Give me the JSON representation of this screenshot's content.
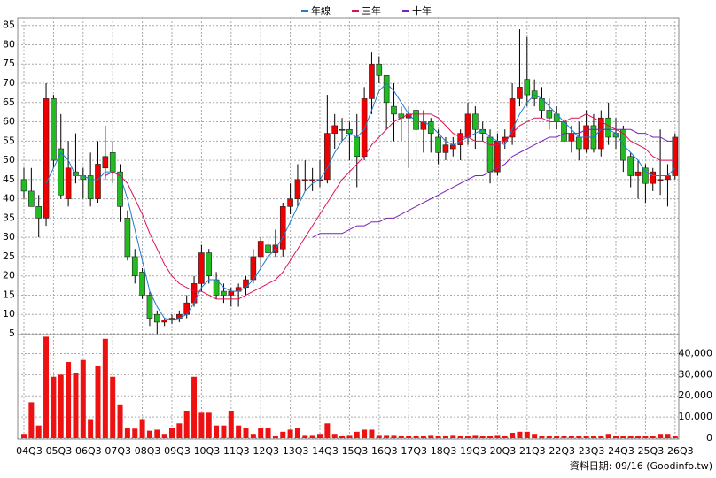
{
  "chart_data": [
    {
      "type": "candlestick",
      "ohlc": [
        [
          45,
          48,
          40,
          42
        ],
        [
          42,
          48,
          38,
          38
        ],
        [
          38,
          41,
          30,
          35
        ],
        [
          35,
          70,
          33,
          66
        ],
        [
          66,
          67,
          48,
          50
        ],
        [
          53,
          62,
          40,
          41
        ],
        [
          40,
          55,
          38,
          48
        ],
        [
          47,
          57,
          44,
          46
        ],
        [
          46,
          48,
          40,
          45
        ],
        [
          46,
          52,
          38,
          40
        ],
        [
          40,
          55,
          39,
          49
        ],
        [
          48,
          59,
          45,
          51
        ],
        [
          52,
          55,
          44,
          47
        ],
        [
          47,
          49,
          34,
          38
        ],
        [
          35,
          37,
          24,
          25
        ],
        [
          25,
          27,
          18,
          20
        ],
        [
          21,
          22,
          14,
          15
        ],
        [
          15,
          16,
          7,
          9
        ],
        [
          10,
          11,
          5,
          8
        ],
        [
          8,
          9,
          7,
          8.5
        ],
        [
          8.5,
          10,
          7.5,
          9
        ],
        [
          9,
          11,
          8,
          10
        ],
        [
          10,
          15,
          9,
          13
        ],
        [
          13,
          20,
          12,
          18
        ],
        [
          18,
          28,
          16,
          26
        ],
        [
          26,
          27,
          18,
          20
        ],
        [
          19,
          21,
          14,
          15
        ],
        [
          16,
          18,
          13,
          15
        ],
        [
          15,
          17,
          12,
          16
        ],
        [
          16,
          18,
          12,
          17
        ],
        [
          17,
          20,
          15,
          19
        ],
        [
          19,
          27,
          18,
          25
        ],
        [
          25,
          30,
          22,
          29
        ],
        [
          28,
          30,
          24,
          26
        ],
        [
          26,
          32,
          25,
          28
        ],
        [
          27,
          39,
          25,
          38
        ],
        [
          38,
          44,
          36,
          40
        ],
        [
          40,
          49,
          38,
          45
        ],
        [
          45,
          50,
          42,
          45
        ],
        [
          45,
          48,
          42,
          45
        ],
        [
          45,
          50,
          43,
          45
        ],
        [
          45,
          67,
          44,
          57
        ],
        [
          57,
          62,
          53,
          59
        ],
        [
          58,
          61,
          55,
          58
        ],
        [
          58,
          60,
          50,
          57
        ],
        [
          56,
          62,
          43,
          51
        ],
        [
          51,
          69,
          50,
          66
        ],
        [
          66,
          78,
          62,
          75
        ],
        [
          75,
          77,
          70,
          72
        ],
        [
          72,
          72,
          58,
          65
        ],
        [
          64,
          70,
          55,
          62
        ],
        [
          62,
          64,
          55,
          61
        ],
        [
          61,
          64,
          48,
          62
        ],
        [
          63,
          64,
          48,
          58
        ],
        [
          58,
          63,
          52,
          60
        ],
        [
          60,
          61,
          52,
          57
        ],
        [
          56,
          58,
          49,
          52
        ],
        [
          52,
          56,
          50,
          54
        ],
        [
          53,
          56,
          51,
          54
        ],
        [
          54,
          58,
          50,
          57
        ],
        [
          56,
          65,
          54,
          62
        ],
        [
          62,
          64,
          53,
          58
        ],
        [
          58,
          60,
          55,
          57
        ],
        [
          56,
          58,
          44,
          47
        ],
        [
          47,
          57,
          46,
          55
        ],
        [
          55,
          58,
          53,
          56
        ],
        [
          56,
          70,
          54,
          66
        ],
        [
          66,
          84,
          64,
          69
        ],
        [
          71,
          82,
          64,
          67
        ],
        [
          68,
          71,
          64,
          66
        ],
        [
          66,
          69,
          61,
          63
        ],
        [
          63,
          66,
          58,
          61
        ],
        [
          62,
          64,
          58,
          60
        ],
        [
          60,
          62,
          54,
          55
        ],
        [
          55,
          59,
          52,
          57
        ],
        [
          56,
          60,
          50,
          53
        ],
        [
          53,
          63,
          52,
          59
        ],
        [
          59,
          62,
          52,
          53
        ],
        [
          53,
          63,
          51,
          61
        ],
        [
          61,
          65,
          54,
          56
        ],
        [
          57,
          61,
          53,
          56
        ],
        [
          58,
          59,
          47,
          50
        ],
        [
          51,
          52,
          43,
          46
        ],
        [
          46,
          50,
          40,
          47
        ],
        [
          48,
          49,
          39,
          44
        ],
        [
          44,
          48,
          42,
          47
        ],
        [
          45,
          58,
          41,
          45
        ],
        [
          45,
          49,
          38,
          46
        ],
        [
          46,
          57,
          45,
          56
        ]
      ],
      "up_color": "#ee0000",
      "down_color": "#22bb22",
      "series": [
        {
          "name": "年線",
          "color": "#1e7bd0",
          "values": [
            null,
            null,
            null,
            44,
            48,
            52,
            50,
            46,
            46,
            45,
            45,
            47,
            47,
            46,
            40,
            32,
            24,
            16,
            12,
            9,
            8.5,
            9,
            10,
            13,
            17,
            19,
            19,
            17,
            16,
            16,
            17,
            19,
            22,
            25,
            27,
            30,
            34,
            38,
            42,
            44,
            45,
            48,
            52,
            55,
            57,
            56,
            58,
            63,
            68,
            70,
            68,
            65,
            62,
            60,
            60,
            59,
            57,
            55,
            54,
            55,
            56,
            57,
            58,
            56,
            55,
            54,
            58,
            62,
            65,
            67,
            66,
            64,
            62,
            60,
            58,
            56,
            56,
            56,
            58,
            58,
            57,
            54,
            52,
            50,
            47,
            46,
            46,
            46,
            48
          ]
        },
        {
          "name": "三年",
          "color": "#dd1155",
          "values": [
            null,
            null,
            null,
            null,
            null,
            null,
            null,
            null,
            null,
            null,
            null,
            46,
            47,
            46,
            44,
            40,
            36,
            31,
            27,
            23,
            20,
            18,
            17,
            16,
            16,
            15,
            14,
            14,
            14,
            14,
            15,
            16,
            17,
            18,
            19,
            21,
            24,
            27,
            30,
            33,
            36,
            39,
            42,
            45,
            47,
            49,
            51,
            54,
            56,
            58,
            60,
            61,
            62,
            62,
            62,
            62,
            61,
            59,
            57,
            56,
            56,
            55,
            55,
            54,
            54,
            55,
            57,
            59,
            60,
            61,
            61,
            60,
            60,
            60,
            61,
            61,
            62,
            61,
            60,
            59,
            58,
            57,
            55,
            54,
            53,
            51,
            50,
            50,
            50
          ]
        },
        {
          "name": "十年",
          "color": "#7722bb",
          "values": [
            null,
            null,
            null,
            null,
            null,
            null,
            null,
            null,
            null,
            null,
            null,
            null,
            null,
            null,
            null,
            null,
            null,
            null,
            null,
            null,
            null,
            null,
            null,
            null,
            null,
            null,
            null,
            null,
            null,
            null,
            null,
            null,
            null,
            null,
            null,
            null,
            null,
            null,
            null,
            30,
            31,
            31,
            31,
            31,
            32,
            33,
            33,
            34,
            34,
            35,
            35,
            36,
            37,
            38,
            39,
            40,
            41,
            42,
            43,
            44,
            45,
            46,
            46,
            47,
            48,
            49,
            51,
            52,
            53,
            54,
            55,
            56,
            56,
            57,
            57,
            57,
            58,
            58,
            58,
            58,
            58,
            58,
            58,
            57,
            57,
            56,
            56,
            55,
            55
          ]
        }
      ],
      "ylim": [
        5,
        87
      ],
      "yticks": [
        5,
        10,
        15,
        20,
        25,
        30,
        35,
        40,
        45,
        50,
        55,
        60,
        65,
        70,
        75,
        80,
        85
      ],
      "grid": true,
      "legend": "top"
    },
    {
      "type": "bar",
      "color": "#ee1111",
      "categories": [
        "04Q3",
        null,
        null,
        null,
        "05Q3",
        null,
        null,
        null,
        "06Q3",
        null,
        null,
        null,
        "07Q3",
        null,
        null,
        null,
        "08Q3",
        null,
        null,
        null,
        "09Q3",
        null,
        null,
        null,
        "10Q3",
        null,
        null,
        null,
        "11Q3",
        null,
        null,
        null,
        "12Q3",
        null,
        null,
        null,
        "13Q3",
        null,
        null,
        null,
        "14Q3",
        null,
        null,
        null,
        "15Q3",
        null,
        null,
        null,
        "16Q3",
        null,
        null,
        null,
        "17Q3",
        null,
        null,
        null,
        "18Q3",
        null,
        null,
        null,
        "19Q3",
        null,
        null,
        null,
        "20Q3",
        null,
        null,
        null,
        "21Q3",
        null,
        null,
        null,
        "22Q3",
        null,
        null,
        null,
        "23Q3",
        null,
        null,
        null,
        "24Q3",
        null,
        null,
        null,
        "25Q3",
        null,
        null,
        null,
        "26Q3"
      ],
      "values": [
        2000,
        17000,
        6000,
        48000,
        29000,
        30000,
        36000,
        31000,
        37000,
        9000,
        34000,
        47000,
        29000,
        16000,
        5000,
        4500,
        9000,
        3500,
        4000,
        2000,
        5000,
        7000,
        13000,
        29000,
        12000,
        12000,
        6000,
        6000,
        13000,
        6000,
        5000,
        2000,
        5000,
        5000,
        1000,
        3000,
        4000,
        5000,
        1500,
        1500,
        2000,
        7000,
        2000,
        1000,
        1500,
        3000,
        4000,
        4000,
        1500,
        1500,
        1500,
        1200,
        1200,
        1000,
        1200,
        1500,
        1000,
        1200,
        1500,
        1200,
        1000,
        1500,
        1000,
        1200,
        1500,
        1200,
        2500,
        3000,
        3000,
        2000,
        1200,
        1000,
        1000,
        1000,
        1200,
        1000,
        1000,
        1200,
        1000,
        2000,
        1200,
        1000,
        1000,
        1200,
        1000,
        1200,
        2000,
        2000,
        1000
      ],
      "ylim": [
        0,
        49000
      ],
      "yticks": [
        0,
        {
          "value": 10000,
          "label": "10,000"
        },
        {
          "value": 20000,
          "label": "20,000"
        },
        {
          "value": 30000,
          "label": "30,000"
        },
        {
          "value": 40000,
          "label": "40,000"
        }
      ],
      "source": "資料日期: 09/16 (Goodinfo.tw)"
    }
  ]
}
